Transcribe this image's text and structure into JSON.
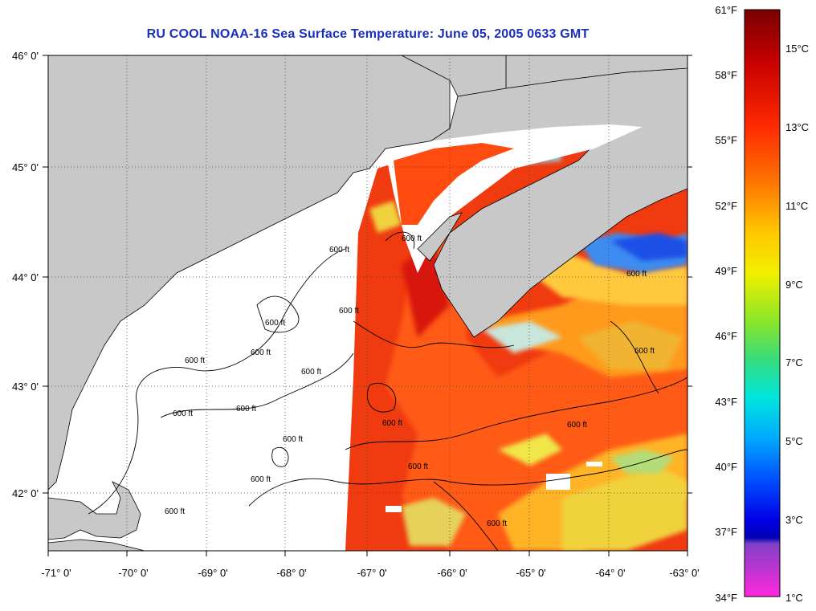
{
  "title": "RU COOL  NOAA-16  Sea Surface Temperature:  June 05, 2005 0633 GMT",
  "map": {
    "lon_ticks": [
      "-71° 0'",
      "-70° 0'",
      "-69° 0'",
      "-68° 0'",
      "-67° 0'",
      "-66° 0'",
      "-65° 0'",
      "-64° 0'",
      "-63° 0'"
    ],
    "lat_ticks": [
      "46° 0'",
      "45° 0'",
      "44° 0'",
      "43° 0'",
      "42° 0'"
    ],
    "lon_range": [
      -71,
      -63
    ],
    "lat_range": [
      41.5,
      46.1
    ],
    "contour_labels": [
      "600 ft",
      "600 ft",
      "600 ft",
      "600 ft",
      "600 ft",
      "600 ft",
      "600 ft",
      "600 ft",
      "600 ft",
      "600 ft",
      "600 ft",
      "600 ft",
      "600 ft",
      "600 ft",
      "600 ft",
      "600 ft",
      "600 ft",
      "600 ft"
    ],
    "colors": {
      "land": "#c8c8c8",
      "nodata": "#ffffff",
      "grid": "#555555"
    }
  },
  "colorbar": {
    "fahrenheit_labels": [
      "61°F",
      "58°F",
      "55°F",
      "52°F",
      "49°F",
      "46°F",
      "43°F",
      "40°F",
      "37°F",
      "34°F"
    ],
    "celsius_labels": [
      "15°C",
      "13°C",
      "11°C",
      "9°C",
      "7°C",
      "5°C",
      "3°C",
      "1°C"
    ],
    "range_f": [
      34,
      61
    ]
  }
}
